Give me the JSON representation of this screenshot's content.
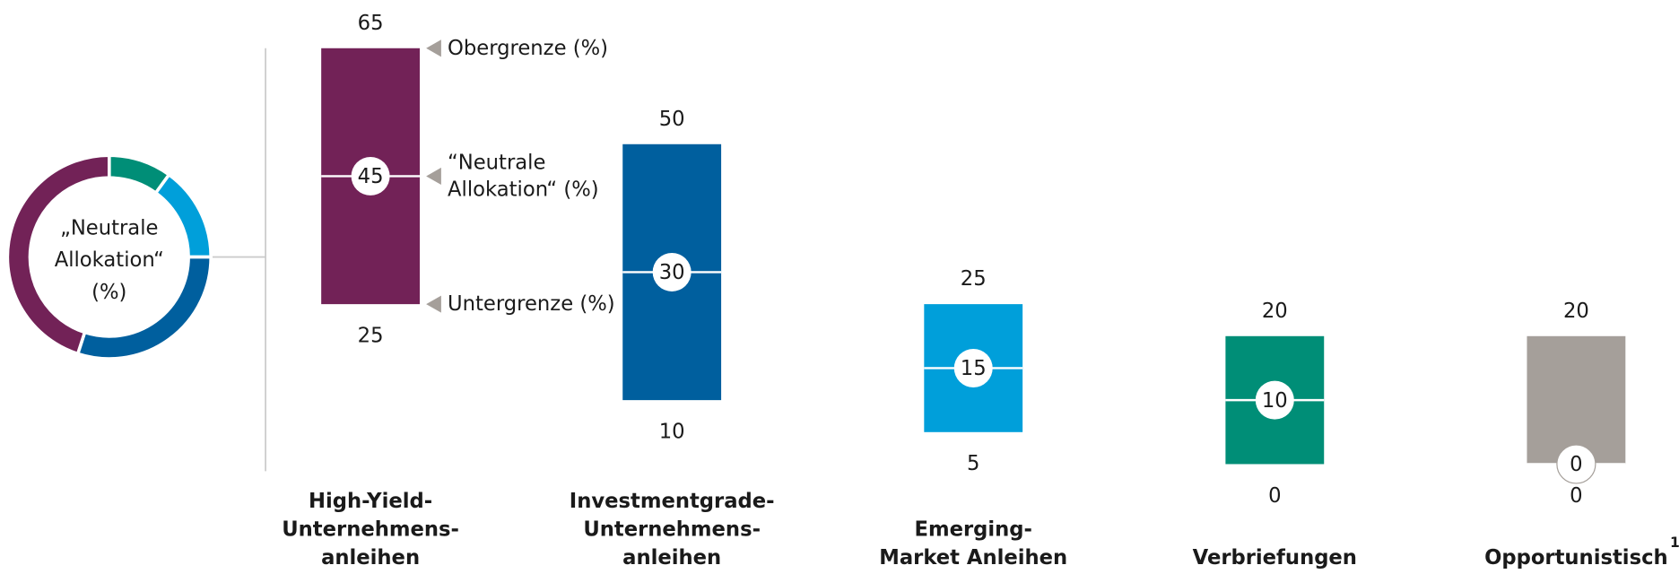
{
  "chart_data": {
    "type": "range",
    "categories": [
      "High-Yield-\nUnternehmens-\nanleihen",
      "Investmentgrade-\nUnternehmens-\nanleihen",
      "Emerging-\nMarket Anleihen",
      "Verbriefungen",
      "Opportunistisch"
    ],
    "category_notes": [
      null,
      null,
      null,
      null,
      "1"
    ],
    "colors": [
      "#722257",
      "#005f9e",
      "#009fda",
      "#008e77",
      "#a59f9a"
    ],
    "upper": [
      65,
      50,
      25,
      20,
      20
    ],
    "lower": [
      25,
      10,
      5,
      0,
      0
    ],
    "neutral": [
      45,
      30,
      15,
      10,
      0
    ],
    "annotations": {
      "upper": "Obergrenze (%)",
      "neutral": "“Neutrale\nAllokation“ (%)",
      "lower": "Untergrenze (%)"
    },
    "donut_label": "„Neutrale\nAllokation“\n(%)"
  }
}
